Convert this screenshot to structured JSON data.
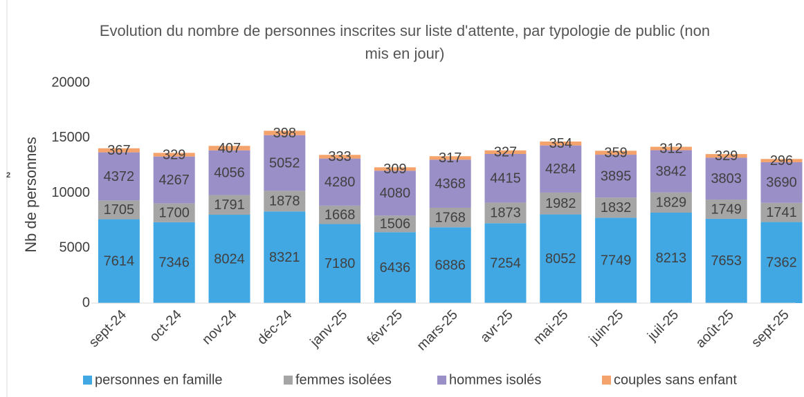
{
  "side_label": "2",
  "chart_data": {
    "type": "stacked_bar",
    "title": "Evolution du nombre de personnes inscrites sur liste d'attente, par typologie de public (non mis en jour)",
    "y_label": "Nb de personnes",
    "categories": [
      "sept-24",
      "oct-24",
      "nov-24",
      "déc-24",
      "janv-25",
      "févr-25",
      "mars-25",
      "avr-25",
      "mai-25",
      "juin-25",
      "juil-25",
      "août-25",
      "sept-25"
    ],
    "series": [
      {
        "name": "personnes en famille",
        "color": "#41a8e4",
        "values": [
          7614,
          7346,
          8024,
          8321,
          7180,
          6436,
          6886,
          7254,
          8052,
          7749,
          8213,
          7653,
          7362
        ]
      },
      {
        "name": "femmes isolées",
        "color": "#a5a5a5",
        "values": [
          1705,
          1700,
          1791,
          1878,
          1668,
          1506,
          1768,
          1873,
          1982,
          1832,
          1829,
          1749,
          1741
        ]
      },
      {
        "name": "hommes isolés",
        "color": "#9a8fc7",
        "values": [
          4372,
          4267,
          4056,
          5052,
          4280,
          4080,
          4368,
          4415,
          4284,
          3895,
          3842,
          3803,
          3690
        ]
      },
      {
        "name": "couples sans enfant",
        "color": "#f4a36c",
        "values": [
          367,
          329,
          407,
          398,
          333,
          309,
          317,
          327,
          354,
          359,
          312,
          329,
          296
        ]
      }
    ],
    "ylim": [
      0,
      20000
    ],
    "yticks": [
      0,
      5000,
      10000,
      15000,
      20000
    ],
    "grid": false,
    "legend": "bottom"
  }
}
